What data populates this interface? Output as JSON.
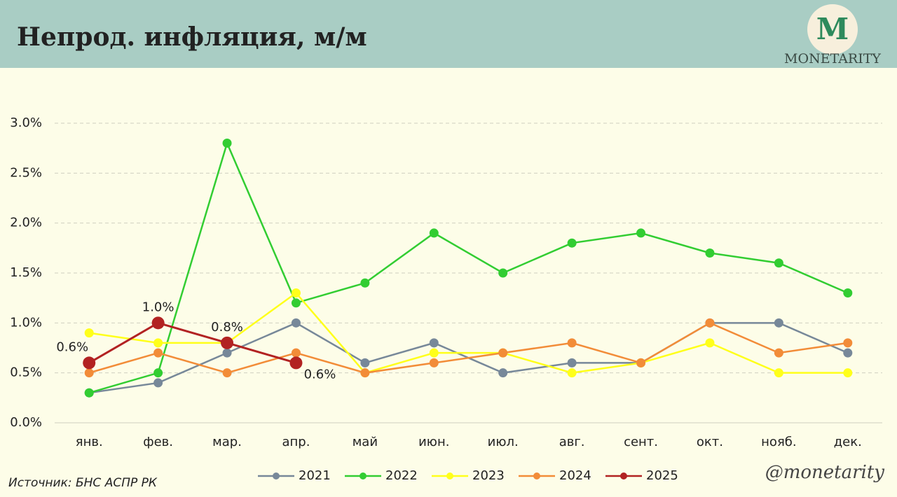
{
  "chart_data": {
    "type": "line",
    "title": "Непрод. инфляция, м/м",
    "logo_letter": "M",
    "logo_text": "MONETARITY",
    "source": "Источник: БНС АСПР РК",
    "watermark": "@monetarity",
    "categories": [
      "янв.",
      "фев.",
      "мар.",
      "апр.",
      "май",
      "июн.",
      "июл.",
      "авг.",
      "сент.",
      "окт.",
      "нояб.",
      "дек."
    ],
    "ylim": [
      0,
      3.0
    ],
    "yticks": [
      {
        "value": 0,
        "label": "0.0%"
      },
      {
        "value": 0.5,
        "label": "0.5%"
      },
      {
        "value": 1.0,
        "label": "1.0%"
      },
      {
        "value": 1.5,
        "label": "1.5%"
      },
      {
        "value": 2.0,
        "label": "2.0%"
      },
      {
        "value": 2.5,
        "label": "2.5%"
      },
      {
        "value": 3.0,
        "label": "3.0%"
      }
    ],
    "grid": true,
    "legend": "bottom",
    "series": [
      {
        "name": "2021",
        "color": "#778899",
        "values": [
          0.3,
          0.4,
          0.7,
          1.0,
          0.6,
          0.8,
          0.5,
          0.6,
          0.6,
          1.0,
          1.0,
          0.7
        ]
      },
      {
        "name": "2022",
        "color": "#32cd32",
        "values": [
          0.3,
          0.5,
          2.8,
          1.2,
          1.4,
          1.9,
          1.5,
          1.8,
          1.9,
          1.7,
          1.6,
          1.3
        ]
      },
      {
        "name": "2023",
        "color": "#ffff1a",
        "values": [
          0.9,
          0.8,
          0.8,
          1.3,
          0.5,
          0.7,
          0.7,
          0.5,
          0.6,
          0.8,
          0.5,
          0.5
        ]
      },
      {
        "name": "2024",
        "color": "#f28c38",
        "values": [
          0.5,
          0.7,
          0.5,
          0.7,
          0.5,
          0.6,
          0.7,
          0.8,
          0.6,
          1.0,
          0.7,
          0.8
        ]
      },
      {
        "name": "2025",
        "color": "#b22222",
        "values": [
          0.6,
          1.0,
          0.8,
          0.6,
          null,
          null,
          null,
          null,
          null,
          null,
          null,
          null
        ],
        "value_labels": [
          "0.6%",
          "1.0%",
          "0.8%",
          "0.6%",
          null,
          null,
          null,
          null,
          null,
          null,
          null,
          null
        ]
      }
    ]
  }
}
